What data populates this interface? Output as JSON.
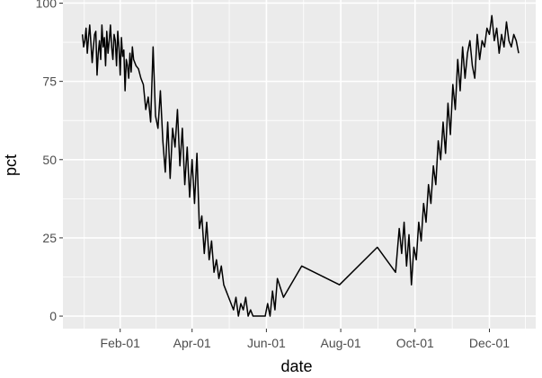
{
  "chart_data": {
    "type": "line",
    "xlabel": "date",
    "ylabel": "pct",
    "x_tick_labels": [
      "Feb-01",
      "Apr-01",
      "Jun-01",
      "Aug-01",
      "Oct-01",
      "Dec-01"
    ],
    "y_tick_labels": [
      "0",
      "25",
      "50",
      "75",
      "100"
    ],
    "xlim": [
      "2020-12-16",
      "2022-01-08"
    ],
    "ylim": [
      -4,
      101
    ],
    "grid": true,
    "legend": "none",
    "colors": {
      "panel": "#ebebeb",
      "grid": "#ffffff",
      "line": "#000000",
      "ticks": "#4d4d4d"
    },
    "series": [
      {
        "x": [
          "2021-01-01",
          "2021-01-02",
          "2021-01-03",
          "2021-01-04",
          "2021-01-05",
          "2021-01-06",
          "2021-01-07",
          "2021-01-08",
          "2021-01-09",
          "2021-01-10",
          "2021-01-11",
          "2021-01-12",
          "2021-01-13",
          "2021-01-14",
          "2021-01-15",
          "2021-01-16",
          "2021-01-17",
          "2021-01-18",
          "2021-01-19",
          "2021-01-20",
          "2021-01-21",
          "2021-01-22",
          "2021-01-23",
          "2021-01-24",
          "2021-01-25",
          "2021-01-26",
          "2021-01-27",
          "2021-01-28",
          "2021-01-29",
          "2021-01-30",
          "2021-01-31",
          "2021-02-01",
          "2021-02-02",
          "2021-02-03",
          "2021-02-04",
          "2021-02-05",
          "2021-02-06",
          "2021-02-07",
          "2021-02-08",
          "2021-02-09",
          "2021-02-10",
          "2021-02-11",
          "2021-02-12",
          "2021-02-14",
          "2021-02-16",
          "2021-02-18",
          "2021-02-20",
          "2021-02-22",
          "2021-02-24",
          "2021-02-26",
          "2021-02-28",
          "2021-03-02",
          "2021-03-04",
          "2021-03-06",
          "2021-03-08",
          "2021-03-10",
          "2021-03-12",
          "2021-03-14",
          "2021-03-16",
          "2021-03-18",
          "2021-03-20",
          "2021-03-22",
          "2021-03-24",
          "2021-03-26",
          "2021-03-28",
          "2021-03-30",
          "2021-04-01",
          "2021-04-03",
          "2021-04-05",
          "2021-04-07",
          "2021-04-09",
          "2021-04-11",
          "2021-04-13",
          "2021-04-15",
          "2021-04-17",
          "2021-04-19",
          "2021-04-21",
          "2021-04-23",
          "2021-04-25",
          "2021-04-27",
          "2021-04-29",
          "2021-05-01",
          "2021-05-03",
          "2021-05-05",
          "2021-05-07",
          "2021-05-09",
          "2021-05-11",
          "2021-05-13",
          "2021-05-15",
          "2021-05-17",
          "2021-05-19",
          "2021-05-21",
          "2021-05-23",
          "2021-05-25",
          "2021-05-27",
          "2021-05-29",
          "2021-05-31",
          "2021-06-02",
          "2021-06-04",
          "2021-06-06",
          "2021-06-08",
          "2021-06-10",
          "2021-06-15",
          "2021-06-30",
          "2021-07-31",
          "2021-08-31",
          "2021-09-15",
          "2021-09-18",
          "2021-09-20",
          "2021-09-22",
          "2021-09-24",
          "2021-09-26",
          "2021-09-28",
          "2021-09-30",
          "2021-10-02",
          "2021-10-04",
          "2021-10-06",
          "2021-10-08",
          "2021-10-10",
          "2021-10-12",
          "2021-10-14",
          "2021-10-16",
          "2021-10-18",
          "2021-10-20",
          "2021-10-22",
          "2021-10-24",
          "2021-10-26",
          "2021-10-28",
          "2021-10-30",
          "2021-11-01",
          "2021-11-03",
          "2021-11-05",
          "2021-11-07",
          "2021-11-09",
          "2021-11-11",
          "2021-11-13",
          "2021-11-15",
          "2021-11-17",
          "2021-11-19",
          "2021-11-21",
          "2021-11-23",
          "2021-11-25",
          "2021-11-27",
          "2021-11-29",
          "2021-12-01",
          "2021-12-03",
          "2021-12-05",
          "2021-12-07",
          "2021-12-09",
          "2021-12-11",
          "2021-12-13",
          "2021-12-15",
          "2021-12-17",
          "2021-12-19",
          "2021-12-21",
          "2021-12-23",
          "2021-12-25"
        ],
        "y": [
          90,
          86,
          88,
          92,
          84,
          89,
          93,
          87,
          81,
          86,
          90,
          91,
          77,
          84,
          88,
          82,
          93,
          86,
          89,
          80,
          91,
          84,
          88,
          93,
          86,
          82,
          90,
          88,
          80,
          91,
          86,
          77,
          89,
          83,
          85,
          72,
          82,
          80,
          76,
          84,
          78,
          86,
          82,
          80,
          79,
          76,
          74,
          66,
          70,
          62,
          86,
          64,
          60,
          72,
          56,
          46,
          62,
          44,
          60,
          54,
          66,
          48,
          60,
          42,
          54,
          38,
          50,
          36,
          52,
          28,
          32,
          20,
          30,
          18,
          24,
          14,
          18,
          12,
          16,
          10,
          8,
          6,
          4,
          2,
          6,
          0,
          4,
          2,
          6,
          0,
          2,
          0,
          0,
          0,
          0,
          0,
          0,
          4,
          0,
          8,
          2,
          12,
          6,
          16,
          10,
          22,
          14,
          28,
          20,
          30,
          16,
          26,
          10,
          22,
          18,
          30,
          24,
          36,
          30,
          42,
          36,
          48,
          42,
          56,
          50,
          62,
          52,
          68,
          58,
          74,
          66,
          82,
          72,
          86,
          76,
          84,
          88,
          80,
          76,
          90,
          82,
          88,
          86,
          92,
          90,
          96,
          88,
          92,
          84,
          90,
          86,
          94,
          88,
          86,
          90,
          88,
          84
        ]
      }
    ]
  }
}
